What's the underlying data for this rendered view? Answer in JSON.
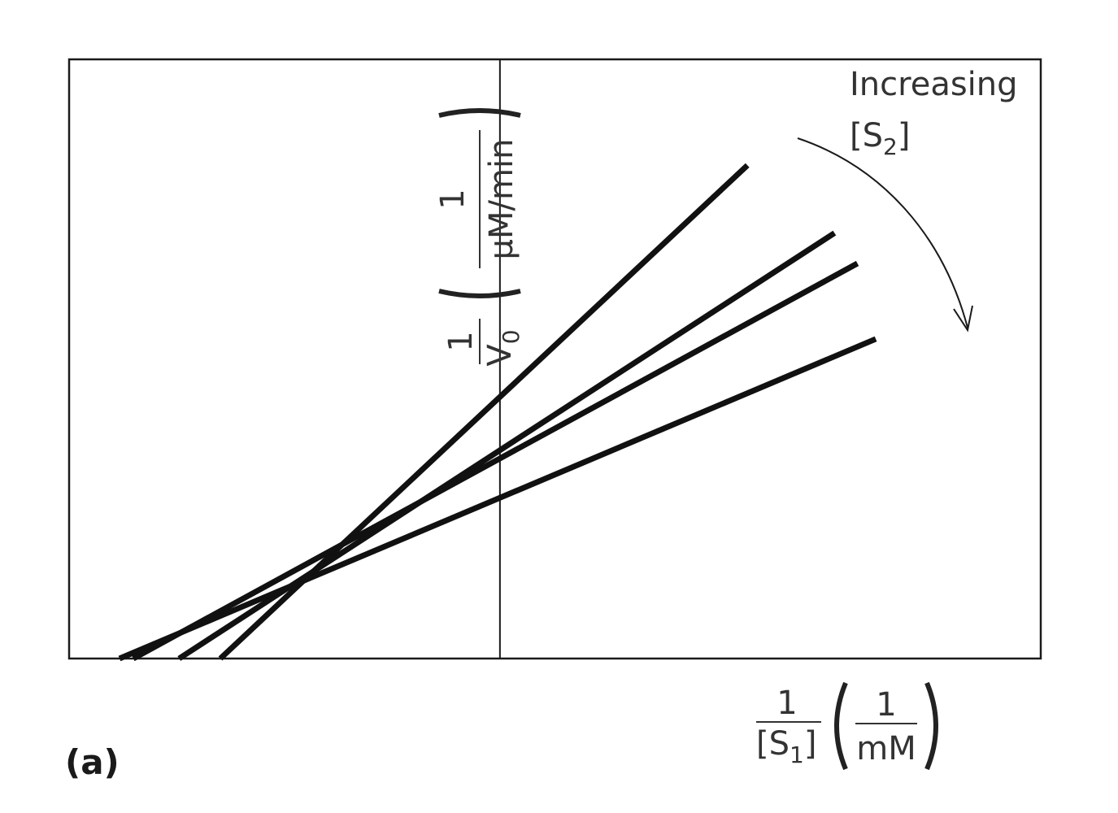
{
  "panel_label": "(a)",
  "chart_data": {
    "type": "line",
    "title": "",
    "xlabel": {
      "left_num": "1",
      "left_den_pre": "[S",
      "left_den_sub": "1",
      "left_den_post": "]",
      "unit_num": "1",
      "unit_den": "mM"
    },
    "ylabel": {
      "left_num": "1",
      "left_den_pre": "V",
      "left_den_sub": "0",
      "unit_num": "1",
      "unit_den": "μM/min"
    },
    "annotation": {
      "line1": "Increasing",
      "line2_pre": "[S",
      "line2_sub": "2",
      "line2_post": "]"
    },
    "xlim": [
      -4.7,
      5.9
    ],
    "ylim": [
      0,
      6.9
    ],
    "grid": false,
    "intersection": {
      "x": -2.3,
      "y": 0.83
    },
    "series": [
      {
        "x": [
          -3.05,
          2.7
        ],
        "y": [
          0,
          5.68
        ]
      },
      {
        "x": [
          -3.5,
          3.65
        ],
        "y": [
          0,
          4.9
        ]
      },
      {
        "x": [
          -4.0,
          3.9
        ],
        "y": [
          0,
          4.55
        ]
      },
      {
        "x": [
          -4.15,
          4.1
        ],
        "y": [
          0,
          3.68
        ]
      }
    ]
  }
}
